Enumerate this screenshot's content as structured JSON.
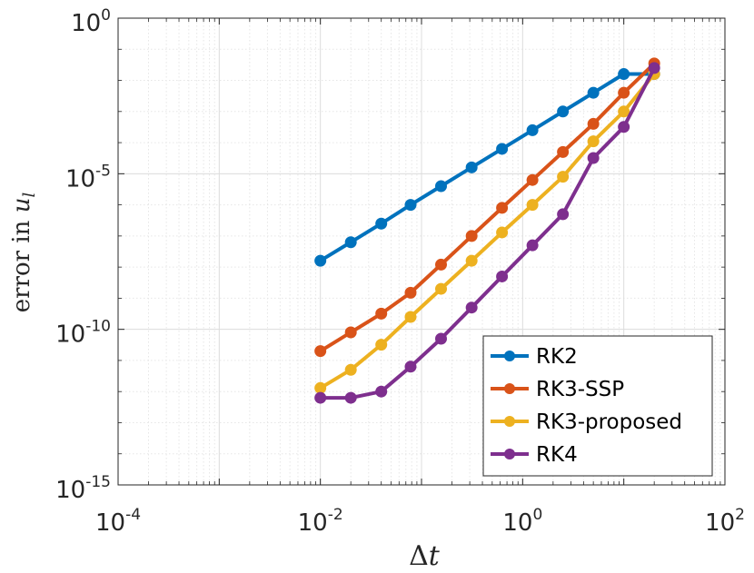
{
  "chart_data": {
    "type": "line",
    "xscale": "log",
    "yscale": "log",
    "xlabel_base": "Δ",
    "xlabel_var": "t",
    "ylabel_text": "error in ",
    "ylabel_var": "u",
    "ylabel_sub": "l",
    "xlim": [
      0.0001,
      100
    ],
    "ylim": [
      1e-15,
      1
    ],
    "xticks": [
      {
        "base": "10",
        "exp": "-4",
        "value": 0.0001
      },
      {
        "base": "10",
        "exp": "-2",
        "value": 0.01
      },
      {
        "base": "10",
        "exp": "0",
        "value": 1
      },
      {
        "base": "10",
        "exp": "2",
        "value": 100
      }
    ],
    "yticks": [
      {
        "base": "10",
        "exp": "0",
        "value": 1
      },
      {
        "base": "10",
        "exp": "-5",
        "value": 1e-05
      },
      {
        "base": "10",
        "exp": "-10",
        "value": 1e-10
      },
      {
        "base": "10",
        "exp": "-15",
        "value": 1e-15
      }
    ],
    "grid": true,
    "legend_position": "bottom-right",
    "x": [
      0.01,
      0.02,
      0.04,
      0.078,
      0.156,
      0.313,
      0.625,
      1.25,
      2.5,
      5,
      10,
      20
    ],
    "series": [
      {
        "name": "RK2",
        "color": "#0072BD",
        "values": [
          1.6e-08,
          6.3e-08,
          2.5e-07,
          1e-06,
          4e-06,
          1.6e-05,
          6.3e-05,
          0.00025,
          0.001,
          0.004,
          0.016,
          0.016
        ]
      },
      {
        "name": "RK3-SSP",
        "color": "#D95319",
        "values": [
          2e-11,
          8e-11,
          3.2e-10,
          1.5e-09,
          1.2e-08,
          1e-07,
          8e-07,
          6.3e-06,
          5e-05,
          0.0004,
          0.004,
          0.035
        ]
      },
      {
        "name": "RK3-proposed",
        "color": "#EDB120",
        "values": [
          1.3e-12,
          5e-12,
          3.2e-11,
          2.5e-10,
          2e-09,
          1.6e-08,
          1.3e-07,
          1e-06,
          8e-06,
          0.00011,
          0.001,
          0.016
        ]
      },
      {
        "name": "RK4",
        "color": "#7E2F8E",
        "values": [
          6.3e-13,
          6.3e-13,
          1e-12,
          6.3e-12,
          5e-11,
          5e-10,
          5e-09,
          5e-08,
          5e-07,
          3.2e-05,
          0.00032,
          0.025
        ]
      }
    ]
  }
}
